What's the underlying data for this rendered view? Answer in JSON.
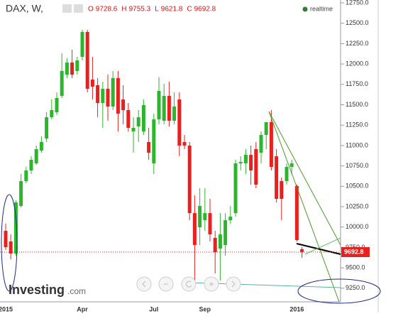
{
  "chart_data": {
    "type": "candlestick",
    "title": "DAX, W,",
    "ohlc_labels": [
      "O",
      "H",
      "L",
      "C"
    ],
    "status": "realtime",
    "brand": "Investing",
    "brand_suffix": ".com",
    "categories": [
      "2015",
      null,
      null,
      null,
      null,
      null,
      null,
      null,
      null,
      null,
      null,
      null,
      null,
      null,
      null,
      "Apr",
      null,
      null,
      null,
      null,
      null,
      null,
      null,
      null,
      null,
      null,
      null,
      null,
      null,
      "Jul",
      null,
      null,
      null,
      null,
      null,
      null,
      null,
      null,
      null,
      "Sep",
      null,
      null,
      null,
      null,
      null,
      null,
      null,
      null,
      null,
      null,
      null,
      null,
      null,
      null,
      null,
      null,
      null,
      "2016",
      null
    ],
    "open": [
      9954,
      9823,
      9675,
      10259,
      10564,
      10694,
      10781,
      10938,
      11086,
      11347,
      11408,
      11609,
      11870,
      12018,
      11914,
      12088,
      12393,
      11809,
      11740,
      11522,
      11696,
      11478,
      11827,
      11565,
      11435,
      11173,
      11234,
      11173,
      11043,
      10781,
      11321,
      11304,
      11609,
      11304,
      11565,
      11043,
      10999,
      10171,
      9997,
      10084,
      10171,
      9867,
      9736,
      9780,
      10084,
      10171,
      10781,
      10781,
      10886,
      10956,
      10912,
      11130,
      11287,
      10868,
      10564,
      10564,
      10738,
      10503,
      9728.6
    ],
    "high": [
      10041,
      9910,
      10328,
      10651,
      10738,
      10868,
      10999,
      11112,
      11408,
      11565,
      11652,
      12132,
      12071,
      12175,
      12088,
      12419,
      12419,
      12088,
      11827,
      11783,
      11870,
      11914,
      11914,
      11740,
      11522,
      11347,
      11435,
      11565,
      11217,
      11391,
      11840,
      11757,
      11783,
      11652,
      11652,
      11130,
      11043,
      10389,
      10477,
      10477,
      10346,
      9954,
      10171,
      10171,
      10259,
      10825,
      10868,
      10956,
      10999,
      11043,
      11173,
      11260,
      11435,
      10956,
      10607,
      10781,
      10825,
      10520,
      9755.3
    ],
    "low": [
      9719,
      9605,
      9649,
      10241,
      10538,
      10651,
      10764,
      10912,
      11043,
      11321,
      11374,
      11583,
      11827,
      11827,
      11870,
      12044,
      11652,
      11565,
      11347,
      11217,
      11304,
      11435,
      11173,
      11260,
      11173,
      10912,
      11043,
      11130,
      10825,
      10651,
      11260,
      11260,
      11234,
      11260,
      10868,
      10956,
      10084,
      9344,
      9780,
      9954,
      9823,
      9431,
      9344,
      9649,
      10041,
      10128,
      10694,
      10651,
      10520,
      10477,
      10781,
      10956,
      10694,
      10302,
      10084,
      10520,
      10651,
      9823,
      9621.8
    ],
    "close": [
      9753,
      9675,
      10302,
      10564,
      10694,
      10825,
      10956,
      11043,
      11347,
      11435,
      11583,
      11914,
      12018,
      11870,
      12044,
      12393,
      11696,
      11722,
      11522,
      11696,
      11478,
      11827,
      11391,
      11435,
      11217,
      11217,
      11347,
      11496,
      10912,
      11321,
      11670,
      11609,
      11304,
      11478,
      10999,
      11000,
      10171,
      9780,
      10259,
      10171,
      9910,
      9692,
      9910,
      10084,
      10128,
      10781,
      10799,
      10886,
      10694,
      10520,
      11130,
      11287,
      10738,
      10346,
      10346,
      10738,
      10781,
      9841,
      9692.8
    ],
    "up_color": "#2db52d",
    "down_color": "#e8201e",
    "price_line_color": "#e8201e",
    "grid": false,
    "ylim": [
      9083,
      12785
    ],
    "yticks": [
      {
        "value": 9250,
        "label": "9250.0"
      },
      {
        "value": 9500,
        "label": "9500.0"
      },
      {
        "value": 9750,
        "label": "9750.0"
      },
      {
        "value": 10000,
        "label": "10000.0"
      },
      {
        "value": 10250,
        "label": "10250.0"
      },
      {
        "value": 10500,
        "label": "10500.0"
      },
      {
        "value": 10750,
        "label": "10750.0"
      },
      {
        "value": 11000,
        "label": "11000.0"
      },
      {
        "value": 11250,
        "label": "11250.0"
      },
      {
        "value": 11500,
        "label": "11500.0"
      },
      {
        "value": 11750,
        "label": "11750.0"
      },
      {
        "value": 12000,
        "label": "12000.0"
      },
      {
        "value": 12250,
        "label": "12250.0"
      },
      {
        "value": 12500,
        "label": "12500.0"
      },
      {
        "value": 12750,
        "label": "12750.0"
      }
    ]
  }
}
